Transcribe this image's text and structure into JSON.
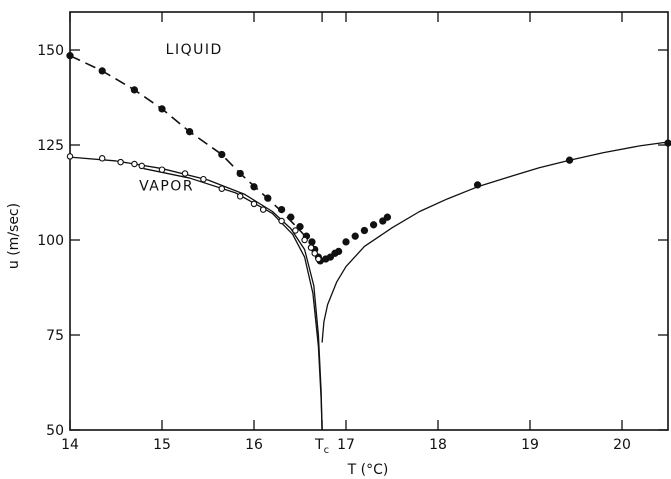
{
  "chart_data": {
    "type": "scatter",
    "xlabel": "T (°C)",
    "ylabel": "u (m/sec)",
    "xlim": [
      14,
      20.5
    ],
    "ylim": [
      50,
      160
    ],
    "x_ticks": [
      {
        "value": 14,
        "label": "14"
      },
      {
        "value": 15,
        "label": "15"
      },
      {
        "value": 16,
        "label": "16"
      },
      {
        "value": 16.74,
        "label": "T",
        "subscript": "c"
      },
      {
        "value": 17,
        "label": "17"
      },
      {
        "value": 18,
        "label": "18"
      },
      {
        "value": 19,
        "label": "19"
      },
      {
        "value": 20,
        "label": "20"
      }
    ],
    "y_ticks": [
      {
        "value": 50,
        "label": "50"
      },
      {
        "value": 75,
        "label": "75"
      },
      {
        "value": 100,
        "label": "100"
      },
      {
        "value": 125,
        "label": "125"
      },
      {
        "value": 150,
        "label": "150"
      }
    ],
    "annotations": [
      {
        "text": "LIQUID",
        "x": 15.35,
        "y": 149
      },
      {
        "text": "VAPOR",
        "x": 15.05,
        "y": 113
      }
    ],
    "series": [
      {
        "marker": "filled",
        "values": [
          [
            14.0,
            148.5
          ],
          [
            14.35,
            144.5
          ],
          [
            14.7,
            139.5
          ],
          [
            15.0,
            134.5
          ],
          [
            15.3,
            128.5
          ],
          [
            15.65,
            122.5
          ],
          [
            15.85,
            117.5
          ],
          [
            16.0,
            114.0
          ],
          [
            16.15,
            111.0
          ],
          [
            16.3,
            108.0
          ],
          [
            16.4,
            106.0
          ],
          [
            16.5,
            103.5
          ],
          [
            16.57,
            101.0
          ],
          [
            16.63,
            99.5
          ],
          [
            16.66,
            97.5
          ],
          [
            16.7,
            95.5
          ],
          [
            16.72,
            94.5
          ],
          [
            16.78,
            95.0
          ],
          [
            16.83,
            95.5
          ],
          [
            16.88,
            96.5
          ],
          [
            16.92,
            97.0
          ],
          [
            17.0,
            99.5
          ],
          [
            17.1,
            101.0
          ],
          [
            17.2,
            102.5
          ],
          [
            17.3,
            104.0
          ],
          [
            17.4,
            105.0
          ],
          [
            17.45,
            106.0
          ],
          [
            18.43,
            114.5
          ],
          [
            19.43,
            121.0
          ],
          [
            20.5,
            125.5
          ]
        ]
      },
      {
        "marker": "open",
        "values": [
          [
            14.0,
            122.0
          ],
          [
            14.35,
            121.5
          ],
          [
            14.55,
            120.5
          ],
          [
            14.7,
            120.0
          ],
          [
            14.78,
            119.5
          ],
          [
            15.0,
            118.5
          ],
          [
            15.25,
            117.5
          ],
          [
            15.45,
            116.0
          ],
          [
            15.65,
            113.5
          ],
          [
            15.85,
            111.5
          ],
          [
            16.0,
            109.5
          ],
          [
            16.1,
            108.0
          ],
          [
            16.3,
            105.0
          ],
          [
            16.45,
            102.5
          ],
          [
            16.55,
            100.0
          ],
          [
            16.62,
            98.0
          ],
          [
            16.66,
            96.5
          ],
          [
            16.7,
            95.0
          ]
        ]
      },
      {
        "line": "dashed",
        "values": [
          [
            14.0,
            148.5
          ],
          [
            14.35,
            144.5
          ],
          [
            14.7,
            139.5
          ],
          [
            15.0,
            134.5
          ],
          [
            15.3,
            128.5
          ],
          [
            15.65,
            122.5
          ],
          [
            15.85,
            117.5
          ],
          [
            16.1,
            112.0
          ],
          [
            16.3,
            107.5
          ],
          [
            16.5,
            102.5
          ],
          [
            16.65,
            98.5
          ]
        ]
      },
      {
        "line": "solid",
        "values": [
          [
            14.0,
            121.8
          ],
          [
            14.5,
            120.8
          ],
          [
            15.0,
            118.8
          ],
          [
            15.5,
            115.8
          ],
          [
            15.9,
            112.0
          ],
          [
            16.2,
            107.5
          ],
          [
            16.4,
            103.0
          ],
          [
            16.55,
            97.5
          ],
          [
            16.65,
            88.0
          ],
          [
            16.7,
            75.0
          ],
          [
            16.73,
            60.0
          ],
          [
            16.74,
            50.0
          ]
        ]
      },
      {
        "line": "solid",
        "values": [
          [
            14.8,
            118.8
          ],
          [
            15.3,
            116.3
          ],
          [
            15.8,
            112.4
          ],
          [
            16.2,
            107.0
          ],
          [
            16.42,
            101.5
          ],
          [
            16.55,
            95.5
          ],
          [
            16.64,
            86.0
          ],
          [
            16.7,
            72.0
          ],
          [
            16.73,
            58.0
          ],
          [
            16.74,
            50.0
          ]
        ]
      },
      {
        "line": "solid",
        "values": [
          [
            16.74,
            73.0
          ],
          [
            16.76,
            78.5
          ],
          [
            16.8,
            83.0
          ],
          [
            16.9,
            89.0
          ],
          [
            17.0,
            93.0
          ],
          [
            17.2,
            98.3
          ],
          [
            17.5,
            103.2
          ],
          [
            17.8,
            107.5
          ],
          [
            18.1,
            110.8
          ],
          [
            18.43,
            114.0
          ],
          [
            18.8,
            116.8
          ],
          [
            19.1,
            119.0
          ],
          [
            19.43,
            121.0
          ],
          [
            19.8,
            123.0
          ],
          [
            20.2,
            124.8
          ],
          [
            20.5,
            125.8
          ]
        ]
      }
    ]
  }
}
